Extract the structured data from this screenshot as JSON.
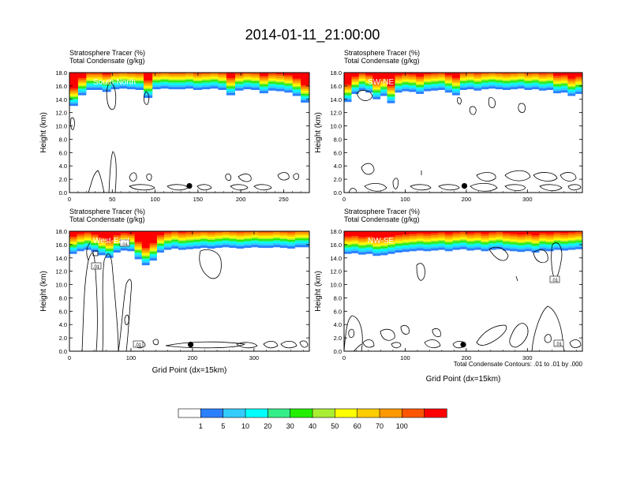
{
  "title": "2014-01-11_21:00:00",
  "colors": {
    "scale": [
      "#ffffff",
      "#2b80ff",
      "#33ccff",
      "#00ffff",
      "#33ee88",
      "#22ee00",
      "#aaee33",
      "#ffff00",
      "#ffcc00",
      "#ff9900",
      "#ff5500",
      "#ff0000"
    ],
    "contour": "#000000"
  },
  "colorbar": {
    "labels": [
      "1",
      "5",
      "10",
      "20",
      "30",
      "40",
      "50",
      "60",
      "70",
      "100"
    ]
  },
  "footnote": "Total Condensate Contours: .01 to .01 by .000",
  "chart_data": [
    {
      "type": "heatmap",
      "panel": "top-left",
      "subtitle_line1": "Stratosphere Tracer   (%)",
      "subtitle_line2": "Total Condensate   (g/kg)",
      "label": "South-North",
      "ylabel": "Height (km)",
      "xlabel": "",
      "ylim": [
        0,
        18
      ],
      "xlim": [
        0,
        280
      ],
      "xticks": [
        "0",
        "50",
        "100",
        "150",
        "200",
        "250"
      ],
      "yticks": [
        "0.0",
        "2.0",
        "4.0",
        "6.0",
        "8.0",
        "10.0",
        "12.0",
        "14.0",
        "16.0",
        "18.0"
      ],
      "marker_x": 140,
      "tracer_base_km": [
        13.0,
        14.6,
        15.4,
        15.4,
        15.1,
        15.5,
        15.6,
        15.5,
        15.4,
        14.2,
        15.5,
        15.6,
        15.5,
        15.5,
        15.6,
        15.4,
        15.5,
        15.6,
        15.4,
        14.6,
        15.3,
        15.5,
        15.4,
        14.9,
        15.3,
        15.2,
        15.0,
        14.5,
        13.5
      ],
      "contour_labels": []
    },
    {
      "type": "heatmap",
      "panel": "top-right",
      "subtitle_line1": "Stratosphere Tracer   (%)",
      "subtitle_line2": "Total Condensate   (g/kg)",
      "label": "SW-NE",
      "ylabel": "Height (km)",
      "xlabel": "",
      "ylim": [
        0,
        18
      ],
      "xlim": [
        0,
        390
      ],
      "xticks": [
        "0",
        "100",
        "200",
        "300"
      ],
      "yticks": [
        "0.0",
        "2.0",
        "4.0",
        "6.0",
        "8.0",
        "10.0",
        "12.0",
        "14.0",
        "16.0",
        "18.0"
      ],
      "marker_x": 197,
      "tracer_base_km": [
        13.6,
        14.8,
        15.3,
        15.0,
        14.0,
        14.5,
        13.4,
        15.0,
        15.2,
        15.1,
        14.8,
        15.2,
        15.3,
        15.4,
        15.0,
        14.6,
        15.4,
        15.5,
        15.3,
        15.5,
        15.6,
        15.5,
        15.4,
        15.5,
        15.6,
        15.4,
        15.5,
        15.3,
        15.4,
        14.9,
        15.0,
        14.5,
        14.8
      ],
      "contour_labels": []
    },
    {
      "type": "heatmap",
      "panel": "bottom-left",
      "subtitle_line1": "Stratosphere Tracer   (%)",
      "subtitle_line2": "Total Condensate   (g/kg)",
      "label": "West-East",
      "ylabel": "Height (km)",
      "xlabel": "Grid Point (dx=15km)",
      "ylim": [
        0,
        18
      ],
      "xlim": [
        0,
        390
      ],
      "xticks": [
        "0",
        "100",
        "200",
        "300"
      ],
      "yticks": [
        "0.0",
        "2.0",
        "4.0",
        "6.0",
        "8.0",
        "10.0",
        "12.0",
        "14.0",
        "16.0",
        "18.0"
      ],
      "marker_x": 197,
      "tracer_base_km": [
        14.6,
        15.0,
        15.2,
        14.9,
        14.4,
        14.0,
        14.8,
        15.1,
        15.0,
        13.8,
        12.9,
        13.6,
        14.8,
        15.2,
        15.4,
        15.2,
        15.3,
        15.4,
        15.5,
        15.4,
        15.5,
        15.6,
        15.5,
        15.4,
        15.5,
        15.6,
        15.5,
        15.5,
        15.6,
        15.5,
        15.4,
        15.6,
        15.6
      ],
      "contour_labels": [
        ".01",
        ".01",
        ".01"
      ]
    },
    {
      "type": "heatmap",
      "panel": "bottom-right",
      "subtitle_line1": "Stratosphere Tracer   (%)",
      "subtitle_line2": "Total Condensate   (g/kg)",
      "label": "NW-SE",
      "ylabel": "Height (km)",
      "xlabel": "Grid Point (dx=15km)",
      "ylim": [
        0,
        18
      ],
      "xlim": [
        0,
        390
      ],
      "xticks": [
        "0",
        "100",
        "200",
        "300"
      ],
      "yticks": [
        "0.0",
        "2.0",
        "4.0",
        "6.0",
        "8.0",
        "10.0",
        "12.0",
        "14.0",
        "16.0",
        "18.0"
      ],
      "marker_x": 195,
      "tracer_base_km": [
        14.6,
        14.7,
        14.5,
        14.6,
        14.3,
        14.4,
        14.6,
        14.8,
        14.9,
        15.0,
        15.1,
        15.0,
        15.1,
        15.2,
        15.0,
        15.2,
        15.3,
        15.1,
        15.2,
        15.0,
        15.2,
        15.3,
        15.1,
        15.0,
        14.9,
        15.0,
        14.8,
        15.1,
        15.0,
        15.2,
        15.1,
        15.2,
        15.3
      ],
      "contour_labels": [
        ".01",
        ".01"
      ]
    }
  ]
}
